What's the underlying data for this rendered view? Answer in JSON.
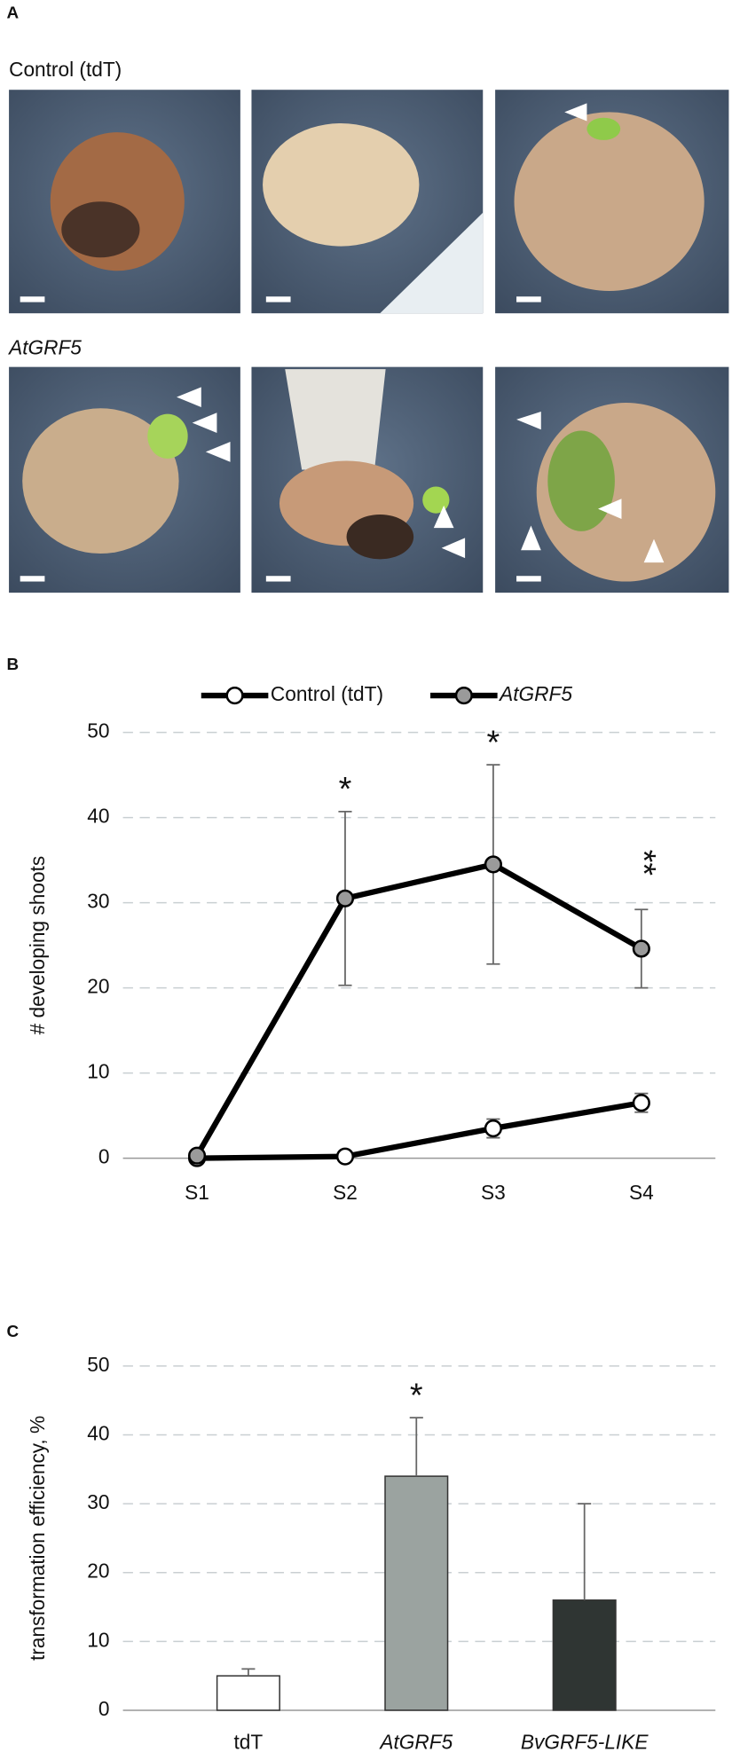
{
  "panel_a": {
    "label": "A",
    "rows": [
      "Control (tdT)",
      "AtGRF5"
    ]
  },
  "chart_data": [
    {
      "type": "line",
      "label": "B",
      "ylabel": "# developing shoots",
      "categories": [
        "S1",
        "S2",
        "S3",
        "S4"
      ],
      "series": [
        {
          "name": "Control (tdT)",
          "color": "#ffffff",
          "font_style": "normal",
          "values": [
            0,
            0.2,
            3.5,
            6.5
          ],
          "errors": [
            0,
            0,
            1.1,
            1.1
          ]
        },
        {
          "name": "AtGRF5",
          "color": "#9a9a9a",
          "font_style": "italic",
          "values": [
            0.3,
            30.5,
            34.5,
            24.6
          ],
          "errors": [
            0,
            10.2,
            11.7,
            4.6
          ]
        }
      ],
      "annotations": [
        {
          "text": "*",
          "category": "S2"
        },
        {
          "text": "*",
          "category": "S3"
        },
        {
          "text": "**",
          "category": "S4"
        }
      ],
      "ylim": [
        0,
        50
      ],
      "yticks": [
        0,
        10,
        20,
        30,
        40,
        50
      ],
      "grid": true
    },
    {
      "type": "bar",
      "label": "C",
      "ylabel": "transformation efficiency, %",
      "categories": [
        "tdT",
        "AtGRF5",
        "BvGRF5-LIKE"
      ],
      "category_styles": [
        "normal",
        "italic",
        "italic"
      ],
      "values": [
        5,
        34,
        16
      ],
      "errors": [
        1,
        8.5,
        14
      ],
      "colors": [
        "#ffffff",
        "#9ba3a0",
        "#2f3533"
      ],
      "annotations": [
        {
          "text": "*",
          "category": "AtGRF5"
        }
      ],
      "ylim": [
        0,
        50
      ],
      "yticks": [
        0,
        10,
        20,
        30,
        40,
        50
      ],
      "grid": true
    }
  ]
}
